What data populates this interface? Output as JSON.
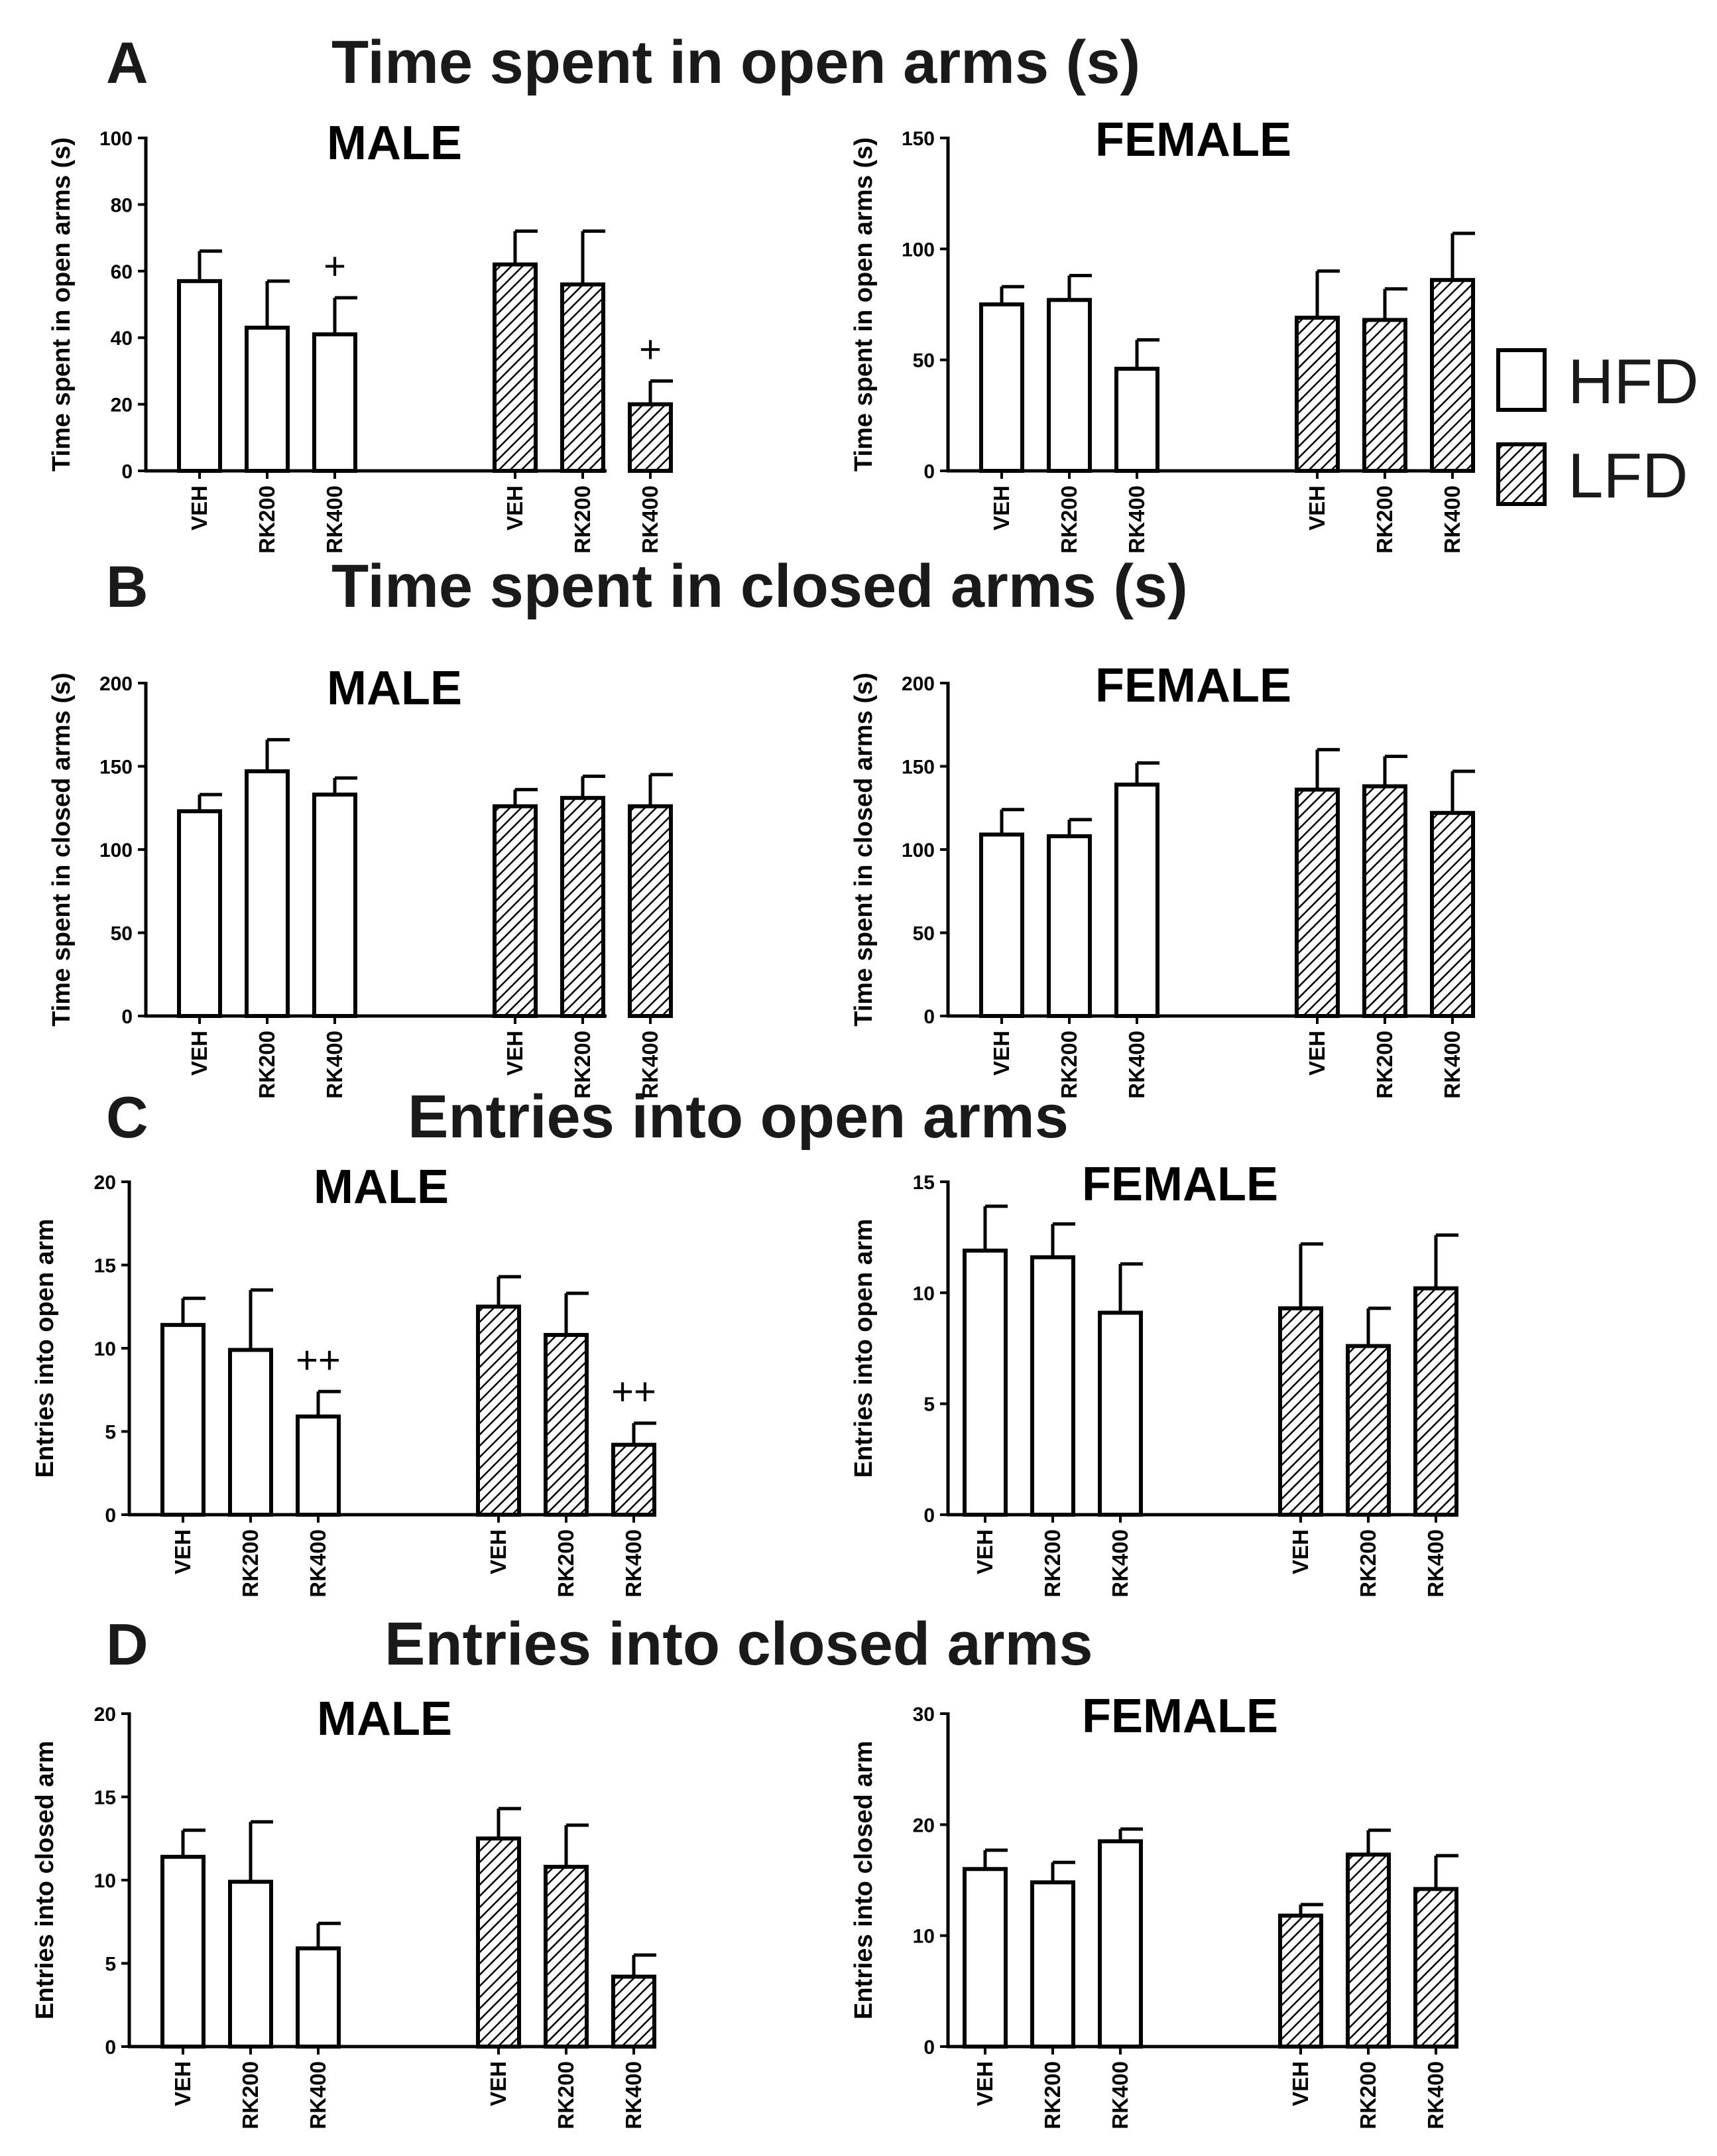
{
  "legend": [
    {
      "label": "HFD",
      "pattern": "open"
    },
    {
      "label": "LFD",
      "pattern": "hatched"
    }
  ],
  "panels": [
    {
      "letter": "A",
      "title": "Time spent in open arms (s)"
    },
    {
      "letter": "B",
      "title": "Time spent in closed arms (s)"
    },
    {
      "letter": "C",
      "title": "Entries into open arms"
    },
    {
      "letter": "D",
      "title": "Entries into closed arms"
    }
  ],
  "colors": {
    "stroke": "#000000",
    "fill_open": "#ffffff",
    "hatch": "#000000"
  },
  "chart_data": [
    {
      "type": "bar",
      "panel": "A",
      "title": "MALE",
      "ylabel": "Time spent in open arms (s)",
      "ylim": [
        0,
        100
      ],
      "yticks": [
        0,
        20,
        40,
        60,
        80,
        100
      ],
      "categories": [
        "VEH",
        "RK200",
        "RK400",
        "VEH",
        "RK200",
        "RK400"
      ],
      "diet": [
        "HFD",
        "HFD",
        "HFD",
        "LFD",
        "LFD",
        "LFD"
      ],
      "values": [
        57,
        43,
        41,
        62,
        56,
        20
      ],
      "errors": [
        9,
        14,
        11,
        10,
        16,
        7
      ],
      "annotations": [
        "",
        "",
        "+",
        "",
        "",
        "+"
      ]
    },
    {
      "type": "bar",
      "panel": "A",
      "title": "FEMALE",
      "ylabel": "Time spent in open arms (s)",
      "ylim": [
        0,
        150
      ],
      "yticks": [
        0,
        50,
        100,
        150
      ],
      "categories": [
        "VEH",
        "RK200",
        "RK400",
        "VEH",
        "RK200",
        "RK400"
      ],
      "diet": [
        "HFD",
        "HFD",
        "HFD",
        "LFD",
        "LFD",
        "LFD"
      ],
      "values": [
        75,
        77,
        46,
        69,
        68,
        86
      ],
      "errors": [
        8,
        11,
        13,
        21,
        14,
        21
      ],
      "annotations": [
        "",
        "",
        "",
        "",
        "",
        ""
      ]
    },
    {
      "type": "bar",
      "panel": "B",
      "title": "MALE",
      "ylabel": "Time spent in closed arms (s)",
      "ylim": [
        0,
        200
      ],
      "yticks": [
        0,
        50,
        100,
        150,
        200
      ],
      "categories": [
        "VEH",
        "RK200",
        "RK400",
        "VEH",
        "RK200",
        "RK400"
      ],
      "diet": [
        "HFD",
        "HFD",
        "HFD",
        "LFD",
        "LFD",
        "LFD"
      ],
      "values": [
        123,
        147,
        133,
        126,
        131,
        126
      ],
      "errors": [
        10,
        19,
        10,
        10,
        13,
        19
      ],
      "annotations": [
        "",
        "",
        "",
        "",
        "",
        ""
      ]
    },
    {
      "type": "bar",
      "panel": "B",
      "title": "FEMALE",
      "ylabel": "Time spent in closed arms (s)",
      "ylim": [
        0,
        200
      ],
      "yticks": [
        0,
        50,
        100,
        150,
        200
      ],
      "categories": [
        "VEH",
        "RK200",
        "RK400",
        "VEH",
        "RK200",
        "RK400"
      ],
      "diet": [
        "HFD",
        "HFD",
        "HFD",
        "LFD",
        "LFD",
        "LFD"
      ],
      "values": [
        109,
        108,
        139,
        136,
        138,
        122
      ],
      "errors": [
        15,
        10,
        13,
        24,
        18,
        25
      ],
      "annotations": [
        "",
        "",
        "",
        "",
        "",
        ""
      ]
    },
    {
      "type": "bar",
      "panel": "C",
      "title": "MALE",
      "ylabel": "Entries into open arm",
      "ylim": [
        0,
        20
      ],
      "yticks": [
        0,
        5,
        10,
        15,
        20
      ],
      "categories": [
        "VEH",
        "RK200",
        "RK400",
        "VEH",
        "RK200",
        "RK400"
      ],
      "diet": [
        "HFD",
        "HFD",
        "HFD",
        "LFD",
        "LFD",
        "LFD"
      ],
      "values": [
        11.4,
        9.9,
        5.9,
        12.5,
        10.8,
        4.2
      ],
      "errors": [
        1.6,
        3.6,
        1.5,
        1.8,
        2.5,
        1.3
      ],
      "annotations": [
        "",
        "",
        "++",
        "",
        "",
        "++"
      ]
    },
    {
      "type": "bar",
      "panel": "C",
      "title": "FEMALE",
      "ylabel": "Entries into open arm",
      "ylim": [
        0,
        15
      ],
      "yticks": [
        0,
        5,
        10,
        15
      ],
      "categories": [
        "VEH",
        "RK200",
        "RK400",
        "VEH",
        "RK200",
        "RK400"
      ],
      "diet": [
        "HFD",
        "HFD",
        "HFD",
        "LFD",
        "LFD",
        "LFD"
      ],
      "values": [
        11.9,
        11.6,
        9.1,
        9.3,
        7.6,
        10.2
      ],
      "errors": [
        2.0,
        1.5,
        2.2,
        2.9,
        1.7,
        2.4
      ],
      "annotations": [
        "",
        "",
        "",
        "",
        "",
        ""
      ]
    },
    {
      "type": "bar",
      "panel": "D",
      "title": "MALE",
      "ylabel": "Entries into closed arm",
      "ylim": [
        0,
        20
      ],
      "yticks": [
        0,
        5,
        10,
        15,
        20
      ],
      "categories": [
        "VEH",
        "RK200",
        "RK400",
        "VEH",
        "RK200",
        "RK400"
      ],
      "diet": [
        "HFD",
        "HFD",
        "HFD",
        "LFD",
        "LFD",
        "LFD"
      ],
      "values": [
        11.4,
        9.9,
        5.9,
        12.5,
        10.8,
        4.2
      ],
      "errors": [
        1.6,
        3.6,
        1.5,
        1.8,
        2.5,
        1.3
      ],
      "annotations": [
        "",
        "",
        "",
        "",
        "",
        ""
      ]
    },
    {
      "type": "bar",
      "panel": "D",
      "title": "FEMALE",
      "ylabel": "Entries into closed arm",
      "ylim": [
        0,
        30
      ],
      "yticks": [
        0,
        10,
        20,
        30
      ],
      "categories": [
        "VEH",
        "RK200",
        "RK400",
        "VEH",
        "RK200",
        "RK400"
      ],
      "diet": [
        "HFD",
        "HFD",
        "HFD",
        "LFD",
        "LFD",
        "LFD"
      ],
      "values": [
        16,
        14.8,
        18.5,
        11.8,
        17.3,
        14.2
      ],
      "errors": [
        1.7,
        1.8,
        1.1,
        1.0,
        2.2,
        3.0
      ],
      "annotations": [
        "",
        "",
        "",
        "",
        "",
        ""
      ]
    }
  ]
}
